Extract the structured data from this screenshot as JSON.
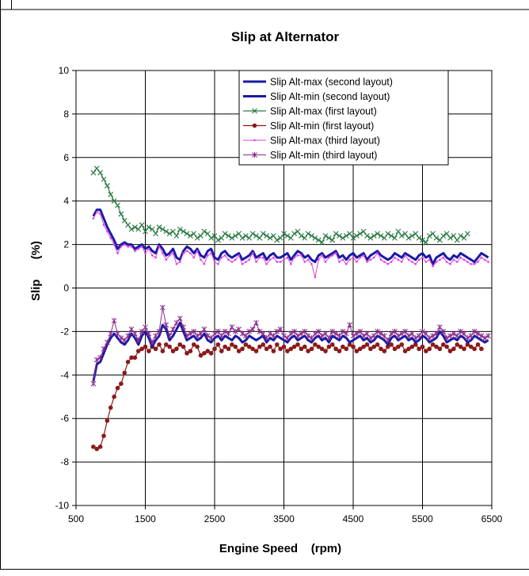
{
  "chart_data": {
    "type": "line",
    "title": "Slip at Alternator",
    "xlabel": "Engine Speed    (rpm)",
    "ylabel": "Slip      (%)",
    "xlim": [
      500,
      6500
    ],
    "ylim": [
      -10,
      10
    ],
    "x_ticks": [
      "500",
      "1500",
      "2500",
      "3500",
      "4500",
      "5500",
      "6500"
    ],
    "y_ticks": [
      "10",
      "8",
      "6",
      "4",
      "2",
      "0",
      "-2",
      "-4",
      "-6",
      "-8",
      "-10"
    ],
    "grid": "major gridlines on both axes",
    "legend_position": "top-right",
    "x_start": 750,
    "x_step": 50,
    "series": [
      {
        "name": "Slip Alt-max (second layout)",
        "color": "#1a1aa6",
        "marker": "none",
        "values": [
          3.3,
          3.6,
          3.6,
          3.2,
          2.8,
          2.5,
          2.2,
          1.8,
          2.0,
          2.1,
          2.0,
          2.0,
          1.8,
          1.9,
          2.0,
          1.8,
          1.9,
          1.7,
          1.6,
          2.0,
          1.8,
          1.5,
          1.6,
          1.8,
          1.4,
          1.3,
          1.7,
          1.9,
          1.8,
          1.6,
          1.8,
          1.5,
          1.4,
          1.7,
          1.8,
          1.4,
          1.3,
          1.6,
          1.7,
          1.5,
          1.4,
          1.5,
          1.6,
          1.3,
          1.4,
          1.5,
          1.7,
          1.4,
          1.5,
          1.6,
          1.3,
          1.5,
          1.6,
          1.4,
          1.4,
          1.5,
          1.6,
          1.3,
          1.5,
          1.7,
          1.6,
          1.4,
          1.5,
          1.3,
          1.2,
          1.5,
          1.6,
          1.4,
          1.5,
          1.6,
          1.7,
          1.4,
          1.5,
          1.3,
          1.5,
          1.6,
          1.4,
          1.5,
          1.6,
          1.3,
          1.5,
          1.6,
          1.7,
          1.5,
          1.4,
          1.3,
          1.4,
          1.6,
          1.5,
          1.4,
          1.6,
          1.5,
          1.4,
          1.3,
          1.5,
          1.6,
          1.4,
          1.5,
          1.1,
          1.4,
          1.5,
          1.6,
          1.4,
          1.3,
          1.5,
          1.4,
          1.6,
          1.5,
          1.4,
          1.3,
          1.2,
          1.4,
          1.6,
          1.5,
          1.4
        ]
      },
      {
        "name": "Slip Alt-min (second layout)",
        "color": "#1a1aa6",
        "marker": "none",
        "values": [
          -4.3,
          -3.5,
          -3.4,
          -3.0,
          -2.6,
          -2.3,
          -2.1,
          -2.3,
          -2.5,
          -2.6,
          -2.4,
          -2.1,
          -2.3,
          -2.6,
          -2.2,
          -2.0,
          -2.3,
          -2.7,
          -2.4,
          -2.2,
          -1.7,
          -1.9,
          -2.4,
          -2.2,
          -1.9,
          -1.6,
          -2.0,
          -2.4,
          -2.3,
          -2.2,
          -2.4,
          -2.3,
          -2.1,
          -2.4,
          -2.5,
          -2.3,
          -2.2,
          -2.4,
          -2.2,
          -2.3,
          -2.4,
          -2.2,
          -2.3,
          -2.5,
          -2.4,
          -2.2,
          -2.3,
          -2.4,
          -2.3,
          -2.2,
          -2.5,
          -2.3,
          -2.4,
          -2.2,
          -2.3,
          -2.4,
          -2.5,
          -2.3,
          -2.2,
          -2.4,
          -2.3,
          -2.2,
          -2.4,
          -2.5,
          -2.3,
          -2.2,
          -2.4,
          -2.3,
          -2.5,
          -2.2,
          -2.3,
          -2.4,
          -2.2,
          -2.3,
          -2.5,
          -2.4,
          -2.3,
          -2.2,
          -2.4,
          -2.3,
          -2.5,
          -2.4,
          -2.2,
          -2.3,
          -2.4,
          -2.6,
          -2.3,
          -2.2,
          -2.4,
          -2.3,
          -2.2,
          -2.4,
          -2.3,
          -2.5,
          -2.4,
          -2.2,
          -2.3,
          -2.5,
          -2.4,
          -2.3,
          -2.0,
          -2.2,
          -2.5,
          -2.4,
          -2.3,
          -2.4,
          -2.2,
          -2.3,
          -2.5,
          -2.4,
          -2.2,
          -2.3,
          -2.4,
          -2.5,
          -2.4
        ]
      },
      {
        "name": "Slip Alt-max (first layout)",
        "color": "#2e7d46",
        "marker": "x",
        "values": [
          5.3,
          5.5,
          5.3,
          5.0,
          4.7,
          4.3,
          4.0,
          3.8,
          3.4,
          3.1,
          2.9,
          2.7,
          2.8,
          2.7,
          2.9,
          2.6,
          2.8,
          2.7,
          2.5,
          2.8,
          2.7,
          2.6,
          2.5,
          2.6,
          2.4,
          2.7,
          2.6,
          2.5,
          2.4,
          2.5,
          2.3,
          2.4,
          2.6,
          2.5,
          2.3,
          2.4,
          2.2,
          2.3,
          2.5,
          2.4,
          2.3,
          2.4,
          2.5,
          2.3,
          2.4,
          2.3,
          2.5,
          2.4,
          2.3,
          2.5,
          2.4,
          2.3,
          2.4,
          2.2,
          2.3,
          2.5,
          2.4,
          2.3,
          2.5,
          2.6,
          2.4,
          2.3,
          2.5,
          2.4,
          2.3,
          2.2,
          2.1,
          2.4,
          2.3,
          2.2,
          2.5,
          2.4,
          2.3,
          2.4,
          2.5,
          2.3,
          2.4,
          2.5,
          2.6,
          2.4,
          2.3,
          2.4,
          2.5,
          2.4,
          2.3,
          2.5,
          2.4,
          2.3,
          2.6,
          2.4,
          2.5,
          2.3,
          2.4,
          2.5,
          2.3,
          2.2,
          2.1,
          2.4,
          2.5,
          2.3,
          2.2,
          2.4,
          2.5,
          2.3,
          2.4,
          2.2,
          2.4,
          2.3,
          2.5
        ]
      },
      {
        "name": "Slip Alt-min (first layout)",
        "color": "#8b1a1a",
        "marker": "circle",
        "values": [
          -7.3,
          -7.4,
          -7.3,
          -6.8,
          -6.1,
          -5.5,
          -5.0,
          -4.6,
          -4.4,
          -3.9,
          -3.4,
          -3.2,
          -3.2,
          -2.9,
          -2.8,
          -2.7,
          -2.9,
          -2.7,
          -2.8,
          -2.6,
          -2.9,
          -2.6,
          -2.7,
          -2.9,
          -2.8,
          -2.6,
          -2.7,
          -3.0,
          -2.9,
          -2.6,
          -2.7,
          -3.1,
          -3.0,
          -2.9,
          -3.0,
          -2.8,
          -2.6,
          -2.9,
          -2.7,
          -2.8,
          -2.6,
          -2.7,
          -2.9,
          -2.8,
          -2.6,
          -2.7,
          -2.8,
          -2.9,
          -2.7,
          -2.6,
          -2.8,
          -2.7,
          -2.9,
          -2.6,
          -2.8,
          -2.7,
          -2.9,
          -2.8,
          -2.7,
          -2.6,
          -2.8,
          -2.7,
          -2.9,
          -2.8,
          -2.6,
          -2.7,
          -2.8,
          -2.9,
          -2.7,
          -2.6,
          -2.8,
          -2.9,
          -2.7,
          -2.8,
          -2.6,
          -2.7,
          -2.9,
          -2.8,
          -2.7,
          -2.6,
          -2.8,
          -2.7,
          -2.6,
          -2.8,
          -2.9,
          -2.7,
          -2.6,
          -2.8,
          -2.7,
          -2.6,
          -2.9,
          -2.8,
          -2.7,
          -2.6,
          -2.8,
          -2.7,
          -2.9,
          -2.8,
          -2.6,
          -2.7,
          -2.8,
          -2.6,
          -2.7,
          -2.9,
          -2.8,
          -2.6,
          -2.7,
          -2.8,
          -2.6,
          -2.7,
          -2.8,
          -2.6,
          -2.8
        ]
      },
      {
        "name": "Slip Alt-max (third layout)",
        "color": "#e040e0",
        "marker": "dot",
        "values": [
          3.2,
          3.5,
          3.4,
          2.9,
          2.6,
          2.3,
          2.0,
          1.6,
          1.9,
          2.0,
          1.9,
          1.9,
          1.7,
          1.8,
          1.9,
          1.6,
          1.8,
          1.5,
          1.4,
          1.9,
          1.6,
          1.3,
          1.5,
          1.6,
          1.1,
          1.2,
          1.6,
          1.7,
          1.6,
          1.4,
          1.7,
          1.3,
          1.1,
          1.5,
          1.6,
          1.2,
          1.1,
          1.4,
          1.5,
          1.3,
          1.2,
          1.3,
          1.5,
          1.1,
          1.2,
          1.3,
          1.6,
          1.2,
          1.4,
          1.4,
          1.1,
          1.3,
          1.4,
          1.2,
          1.2,
          1.3,
          1.4,
          1.1,
          1.4,
          1.5,
          1.5,
          1.2,
          1.3,
          1.1,
          0.5,
          1.3,
          1.5,
          1.2,
          1.4,
          1.5,
          1.6,
          1.2,
          1.3,
          1.1,
          1.3,
          1.4,
          1.2,
          1.4,
          1.5,
          1.2,
          1.3,
          1.4,
          1.6,
          1.3,
          1.2,
          1.1,
          1.2,
          1.4,
          1.3,
          1.2,
          1.5,
          1.3,
          1.2,
          1.1,
          1.3,
          1.4,
          1.2,
          1.3,
          1.0,
          1.2,
          1.3,
          1.4,
          1.2,
          1.1,
          1.3,
          1.2,
          1.4,
          1.3,
          1.2,
          1.1,
          1.1,
          1.2,
          1.4,
          1.3,
          1.2
        ]
      },
      {
        "name": "Slip Alt-min (third layout)",
        "color": "#8a2a8a",
        "marker": "star",
        "values": [
          -4.4,
          -3.3,
          -3.2,
          -2.8,
          -2.5,
          -2.1,
          -1.5,
          -2.1,
          -2.3,
          -2.4,
          -2.2,
          -1.9,
          -2.1,
          -2.4,
          -2.0,
          -1.8,
          -2.1,
          -2.5,
          -2.2,
          -2.0,
          -0.9,
          -1.7,
          -2.2,
          -1.9,
          -1.6,
          -1.4,
          -1.8,
          -2.2,
          -2.1,
          -2.0,
          -2.2,
          -2.1,
          -1.9,
          -2.2,
          -2.3,
          -2.1,
          -2.0,
          -2.2,
          -2.0,
          -2.1,
          -1.8,
          -2.0,
          -1.9,
          -2.1,
          -2.2,
          -2.0,
          -1.9,
          -1.6,
          -2.0,
          -2.1,
          -2.3,
          -2.1,
          -2.2,
          -2.0,
          -1.9,
          -2.2,
          -2.3,
          -2.1,
          -2.0,
          -2.2,
          -2.1,
          -2.0,
          -2.2,
          -2.3,
          -2.1,
          -2.0,
          -2.2,
          -2.1,
          -2.3,
          -2.0,
          -2.1,
          -2.2,
          -2.0,
          -2.1,
          -1.7,
          -2.2,
          -2.1,
          -2.0,
          -2.2,
          -2.1,
          -2.3,
          -2.2,
          -2.0,
          -2.1,
          -2.2,
          -2.4,
          -2.1,
          -2.0,
          -2.2,
          -2.1,
          -2.0,
          -2.2,
          -2.1,
          -2.3,
          -2.2,
          -2.0,
          -2.1,
          -2.3,
          -2.2,
          -2.1,
          -1.8,
          -2.0,
          -2.3,
          -2.2,
          -2.1,
          -2.2,
          -2.0,
          -2.1,
          -2.3,
          -2.2,
          -2.0,
          -2.1,
          -2.2,
          -2.3,
          -2.2
        ]
      }
    ]
  }
}
